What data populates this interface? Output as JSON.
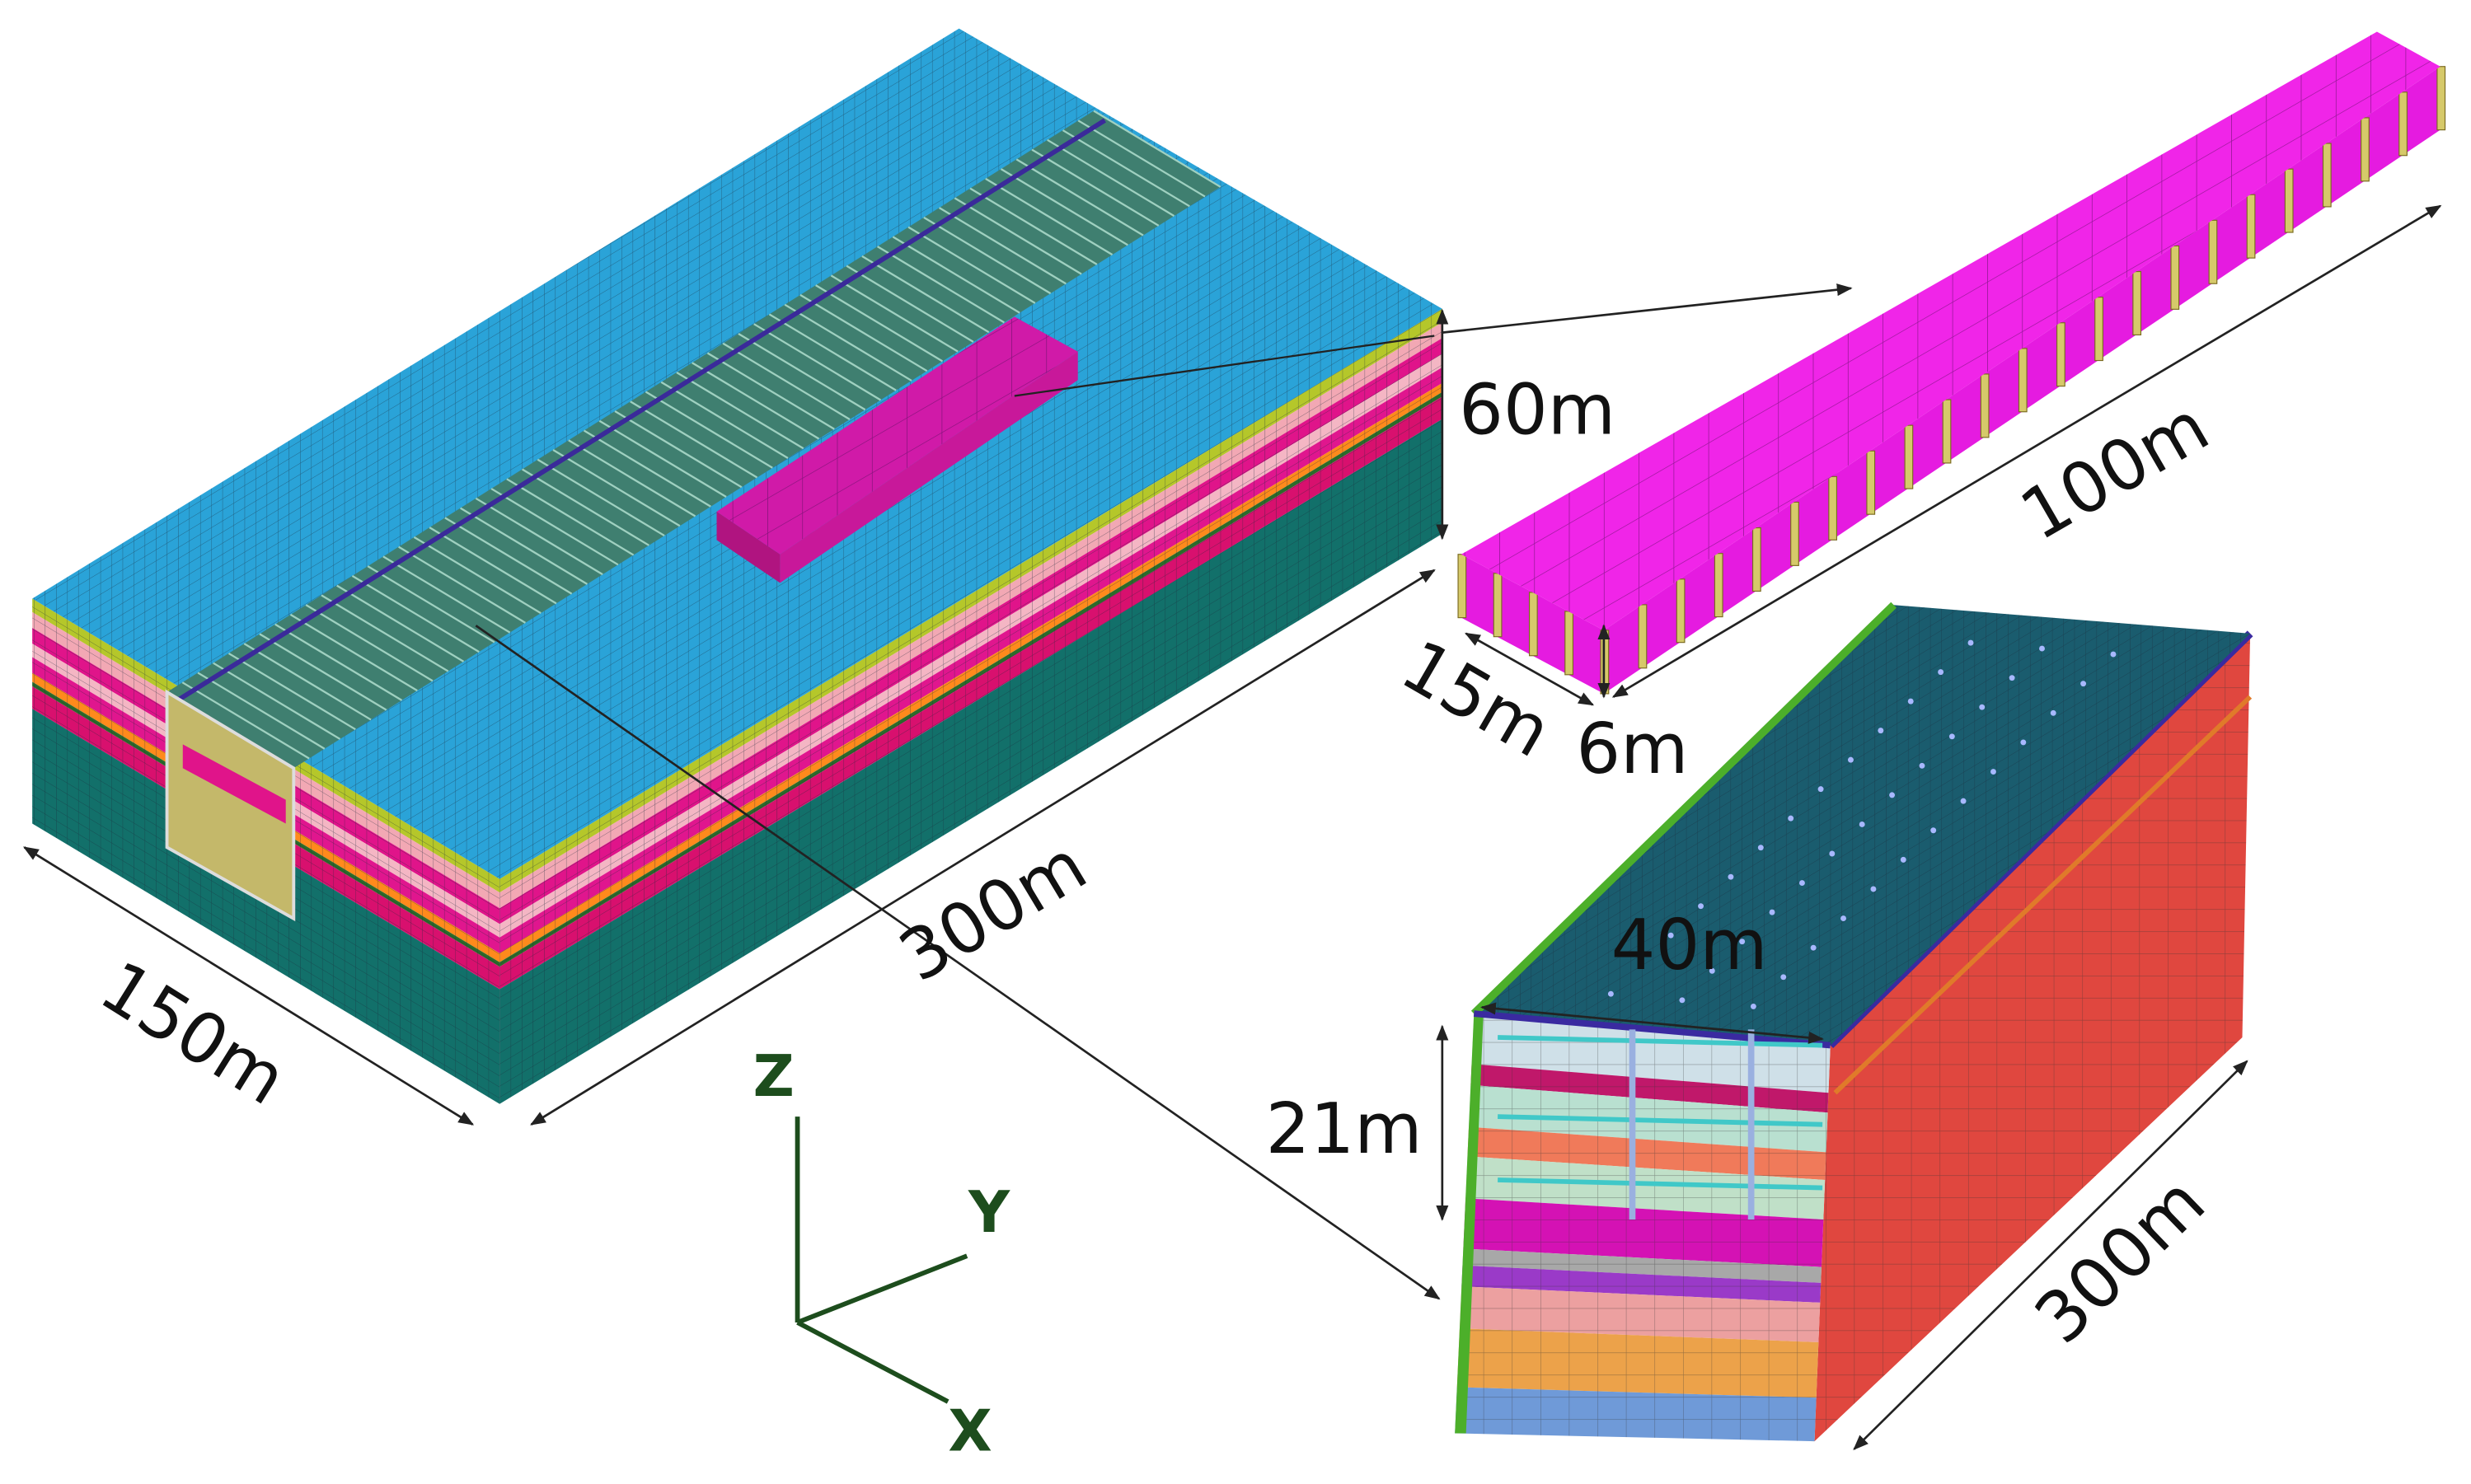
{
  "main_model": {
    "width_label": "150m",
    "length_label": "300m",
    "height_label": "60m"
  },
  "beam_detail": {
    "length_label": "100m",
    "width_label": "15m",
    "height_label": "6m"
  },
  "section_detail": {
    "width_label": "40m",
    "depth_label": "21m",
    "length_label": "300m"
  },
  "axes": {
    "z": "Z",
    "y": "Y",
    "x": "X"
  }
}
